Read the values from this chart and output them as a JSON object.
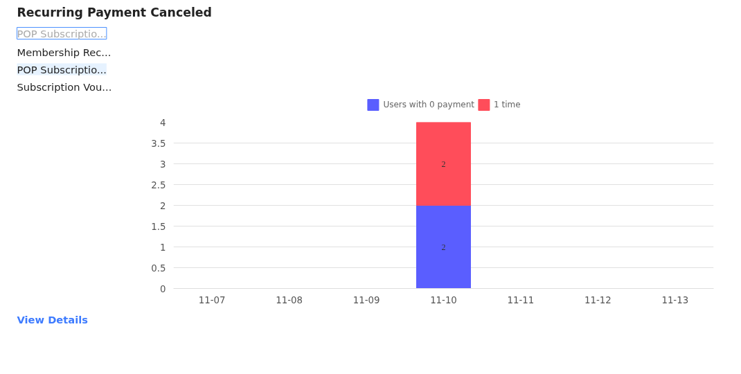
{
  "chart_data": {
    "type": "bar",
    "title": "Recurring Payment Canceled",
    "categories": [
      "11-07",
      "11-08",
      "11-09",
      "11-10",
      "11-11",
      "11-12",
      "11-13"
    ],
    "series": [
      {
        "name": "Users with 0 payment",
        "color": "#5a5eff",
        "values": [
          0,
          0,
          0,
          2,
          0,
          0,
          0
        ],
        "value_labels": [
          null,
          null,
          null,
          "2",
          null,
          null,
          null
        ]
      },
      {
        "name": "1 time",
        "color": "#ff4d5a",
        "values": [
          0,
          0,
          0,
          2,
          0,
          0,
          0
        ],
        "value_labels": [
          null,
          null,
          null,
          "2",
          null,
          null,
          null
        ]
      }
    ],
    "stacked": true,
    "ylim": [
      0,
      4
    ],
    "yticks": [
      0,
      0.5,
      1,
      1.5,
      2,
      2.5,
      3,
      3.5,
      4
    ],
    "grid": "y",
    "legend": "top",
    "annotations": [
      "POP Subscriptio...",
      "Membership Rec...",
      "POP Subscriptio...",
      "Subscription Vou...",
      "View Details"
    ]
  }
}
